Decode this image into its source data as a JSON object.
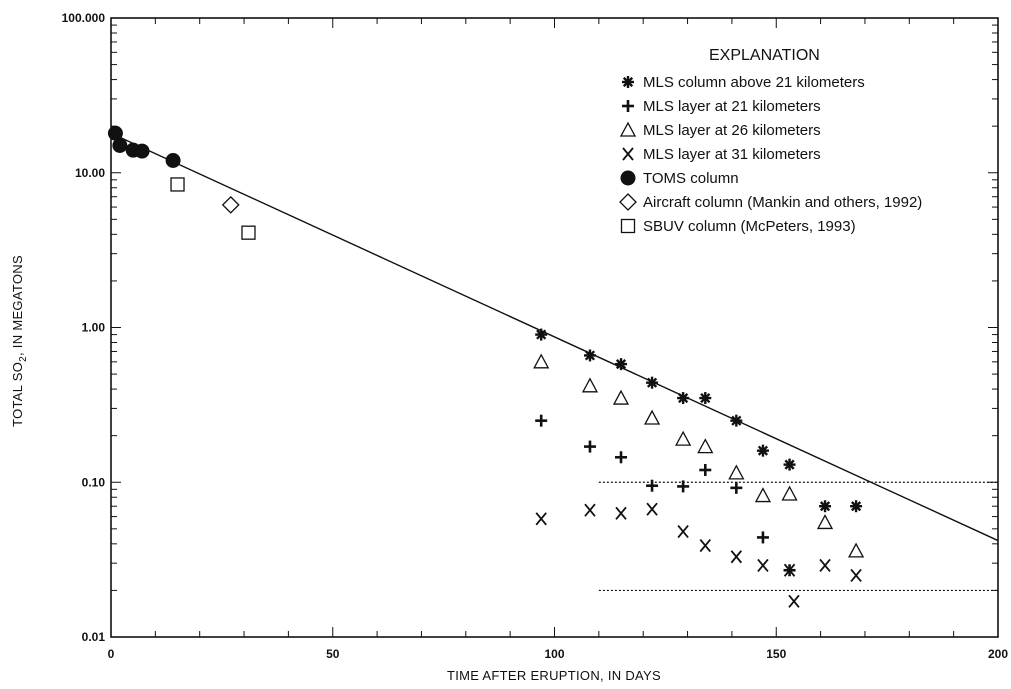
{
  "chart_data": {
    "type": "scatter",
    "title": "",
    "xlabel": "TIME AFTER ERUPTION, IN DAYS",
    "ylabel_main": "TOTAL SO",
    "ylabel_sub": "2",
    "ylabel_rest": ", IN MEGATONS",
    "xlim": [
      0,
      200
    ],
    "ylim": [
      0.01,
      100
    ],
    "yscale": "log",
    "x_ticks": [
      0,
      50,
      100,
      150,
      200
    ],
    "x_tick_labels": [
      "0",
      "50",
      "100",
      "150",
      "200"
    ],
    "y_ticks": [
      0.01,
      0.1,
      1,
      10,
      100
    ],
    "y_tick_labels": [
      "0.01",
      "0.10",
      "1.00",
      "10.00",
      "100.000"
    ],
    "grid": false,
    "legend_title": "EXPLANATION",
    "legend_position": "top-right",
    "reference_lines": [
      {
        "style": "dotted-horizontal",
        "y": 0.1,
        "x_start": 110
      },
      {
        "style": "dotted-horizontal",
        "y": 0.02,
        "x_start": 110
      }
    ],
    "trend_line": {
      "x": [
        0,
        200
      ],
      "y": [
        18,
        0.042
      ]
    },
    "series": [
      {
        "name": "MLS column above 21 kilometers",
        "marker": "asterisk",
        "x": [
          97,
          108,
          115,
          122,
          129,
          134,
          141,
          147,
          153,
          161,
          168
        ],
        "y": [
          0.9,
          0.66,
          0.58,
          0.44,
          0.35,
          0.35,
          0.25,
          0.16,
          0.13,
          0.07,
          0.07
        ]
      },
      {
        "name": "MLS layer at 21 kilometers",
        "marker": "plus",
        "x": [
          97,
          108,
          115,
          122,
          129,
          134,
          141,
          147,
          153
        ],
        "y": [
          0.25,
          0.17,
          0.145,
          0.095,
          0.094,
          0.12,
          0.092,
          0.044,
          0.027
        ]
      },
      {
        "name": "MLS layer at 26 kilometers",
        "marker": "triangle",
        "x": [
          97,
          108,
          115,
          122,
          129,
          134,
          141,
          147,
          153,
          161,
          168
        ],
        "y": [
          0.6,
          0.42,
          0.35,
          0.26,
          0.19,
          0.17,
          0.115,
          0.082,
          0.084,
          0.055,
          0.036
        ]
      },
      {
        "name": "MLS layer at 31 kilometers",
        "marker": "x",
        "x": [
          97,
          108,
          115,
          122,
          129,
          134,
          141,
          147,
          153,
          154,
          161,
          168
        ],
        "y": [
          0.058,
          0.066,
          0.063,
          0.067,
          0.048,
          0.039,
          0.033,
          0.029,
          0.027,
          0.017,
          0.029,
          0.025
        ]
      },
      {
        "name": "TOMS column",
        "marker": "filled-circle",
        "x": [
          1,
          2,
          5,
          7,
          14
        ],
        "y": [
          18,
          15,
          14,
          13.8,
          12
        ]
      },
      {
        "name": "Aircraft column (Mankin and others, 1992)",
        "marker": "diamond",
        "x": [
          27
        ],
        "y": [
          6.2
        ]
      },
      {
        "name": "SBUV column (McPeters, 1993)",
        "marker": "square",
        "x": [
          15,
          31
        ],
        "y": [
          8.4,
          4.1
        ]
      }
    ],
    "colors": {
      "ink": "#111111",
      "background": "#ffffff"
    }
  }
}
